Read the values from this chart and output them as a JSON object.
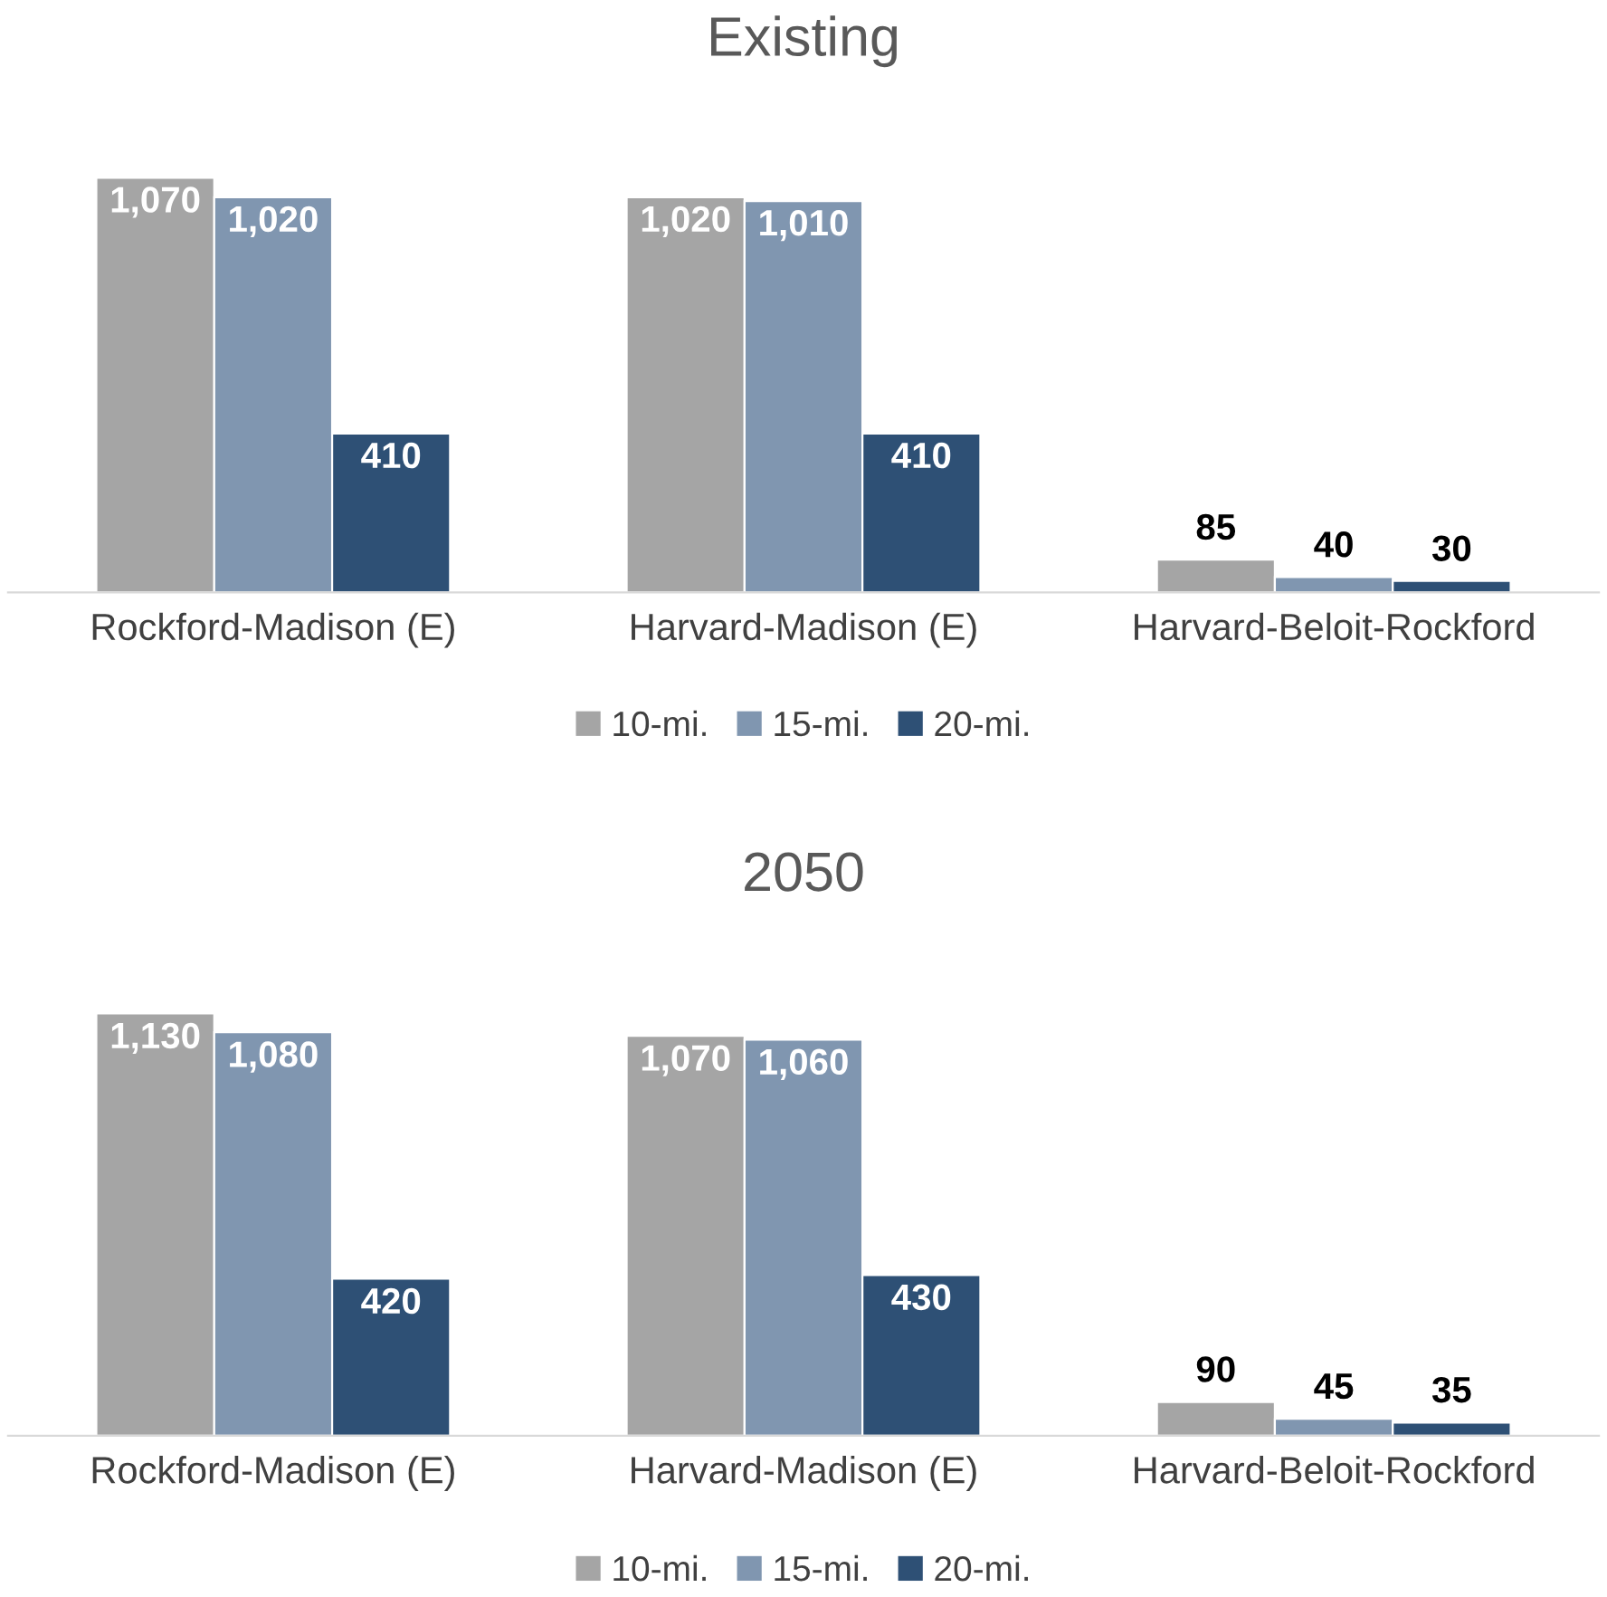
{
  "chart_data": [
    {
      "type": "bar",
      "title": "Existing",
      "categories": [
        "Rockford-Madison (E)",
        "Harvard-Madison (E)",
        "Harvard-Beloit-Rockford"
      ],
      "legend": "bottom",
      "grid": false,
      "series": [
        {
          "name": "10-mi.",
          "color": "#a5a5a5",
          "values": [
            1070,
            1020,
            85
          ],
          "value_labels": [
            "1,070",
            "1,020",
            "85"
          ]
        },
        {
          "name": "15-mi.",
          "color": "#8096b0",
          "values": [
            1020,
            1010,
            40
          ],
          "value_labels": [
            "1,020",
            "1,010",
            "40"
          ]
        },
        {
          "name": "20-mi.",
          "color": "#2e5075",
          "values": [
            410,
            410,
            30
          ],
          "value_labels": [
            "410",
            "410",
            "30"
          ]
        }
      ]
    },
    {
      "type": "bar",
      "title": "2050",
      "categories": [
        "Rockford-Madison (E)",
        "Harvard-Madison (E)",
        "Harvard-Beloit-Rockford"
      ],
      "legend": "bottom",
      "grid": false,
      "series": [
        {
          "name": "10-mi.",
          "color": "#a5a5a5",
          "values": [
            1130,
            1070,
            90
          ],
          "value_labels": [
            "1,130",
            "1,070",
            "90"
          ]
        },
        {
          "name": "15-mi.",
          "color": "#8096b0",
          "values": [
            1080,
            1060,
            45
          ],
          "value_labels": [
            "1,080",
            "1,060",
            "45"
          ]
        },
        {
          "name": "20-mi.",
          "color": "#2e5075",
          "values": [
            420,
            430,
            35
          ],
          "value_labels": [
            "420",
            "430",
            "35"
          ]
        }
      ]
    }
  ]
}
